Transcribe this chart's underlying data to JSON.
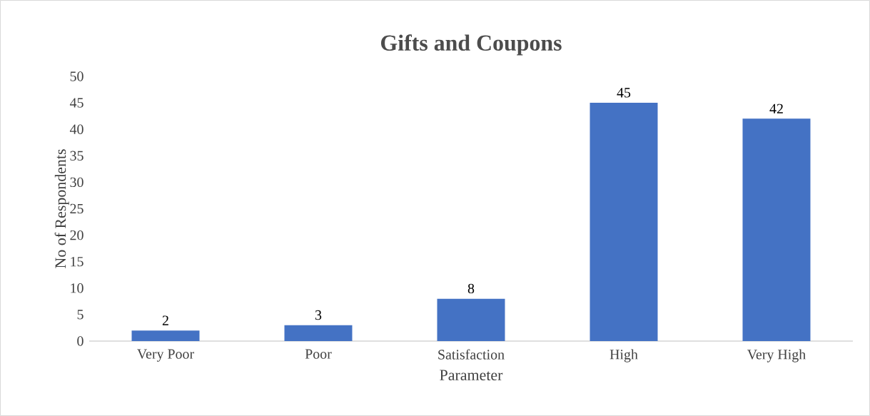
{
  "chart_data": {
    "type": "bar",
    "title": "Gifts and Coupons",
    "xlabel": "Parameter",
    "ylabel": "No of Respondents",
    "categories": [
      "Very Poor",
      "Poor",
      "Satisfaction",
      "High",
      "Very High"
    ],
    "values": [
      2,
      3,
      8,
      45,
      42
    ],
    "color": "#4472c4",
    "ylim": [
      0,
      50
    ],
    "yticks": [
      0,
      5,
      10,
      15,
      20,
      25,
      30,
      35,
      40,
      45,
      50
    ],
    "data_labels": true
  }
}
